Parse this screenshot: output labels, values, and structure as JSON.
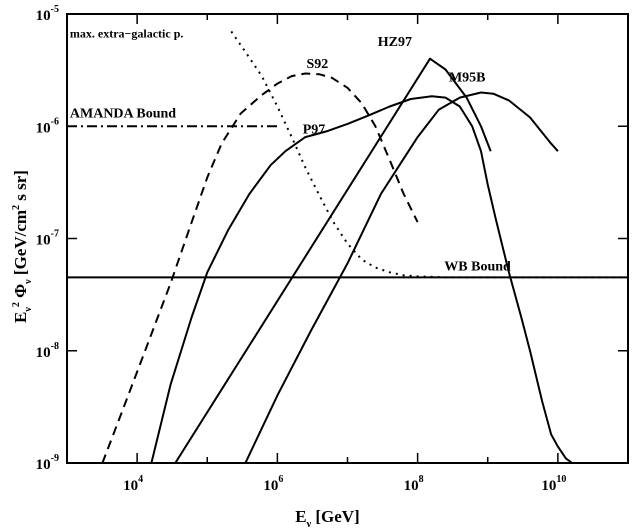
{
  "chart_data": {
    "type": "line",
    "xscale": "log",
    "yscale": "log",
    "xlim": [
      1000,
      100000000000.0
    ],
    "ylim": [
      1e-09,
      1e-05
    ],
    "xlabel": "E_ν [GeV]",
    "ylabel": "E_ν² Φ_ν [GeV/cm² s sr]",
    "x_ticks": [
      {
        "value": 10000.0,
        "base": "10",
        "exp": "4"
      },
      {
        "value": 1000000.0,
        "base": "10",
        "exp": "6"
      },
      {
        "value": 100000000.0,
        "base": "10",
        "exp": "8"
      },
      {
        "value": 10000000000.0,
        "base": "10",
        "exp": "10"
      }
    ],
    "y_ticks": [
      {
        "value": 1e-09,
        "base": "10",
        "exp": "-9"
      },
      {
        "value": 1e-08,
        "base": "10",
        "exp": "-8"
      },
      {
        "value": 1e-07,
        "base": "10",
        "exp": "-7"
      },
      {
        "value": 1e-06,
        "base": "10",
        "exp": "-6"
      },
      {
        "value": 1e-05,
        "base": "10",
        "exp": "-5"
      }
    ],
    "series": [
      {
        "name": "S92",
        "style": "dashed",
        "x": [
          3200.0,
          6000.0,
          13000.0,
          30000.0,
          60000.0,
          100000.0,
          160000.0,
          300000.0,
          600000.0,
          1000000.0,
          1600000.0,
          2500000.0,
          4000000.0,
          6000000.0,
          10000000.0,
          16000000.0,
          25000000.0,
          40000000.0,
          63000000.0,
          100000000.0
        ],
        "y": [
          1e-09,
          2.8e-09,
          1e-08,
          4e-08,
          1.4e-07,
          3.5e-07,
          7e-07,
          1.3e-06,
          1.9e-06,
          2.4e-06,
          2.8e-06,
          2.95e-06,
          2.9e-06,
          2.7e-06,
          2.2e-06,
          1.6e-06,
          1e-06,
          5e-07,
          2.5e-07,
          1.4e-07
        ]
      },
      {
        "name": "AMANDA Bound",
        "style": "dashdot",
        "x": [
          1000.0,
          1000000.0
        ],
        "y": [
          1e-06,
          1e-06
        ]
      },
      {
        "name": "max. extra-galactic p.",
        "style": "dotted",
        "x": [
          220000.0,
          350000.0,
          600000.0,
          1000000.0,
          1600000.0,
          2500000.0,
          4000000.0,
          6300000.0,
          10000000.0,
          16000000.0,
          25000000.0,
          40000000.0,
          63000000.0,
          100000000.0,
          160000000.0,
          250000000.0,
          400000000.0,
          1000000000.0,
          10000000000.0,
          100000000000.0
        ],
        "y": [
          7e-06,
          4.6e-06,
          2.8e-06,
          1.5e-06,
          8e-07,
          4.3e-07,
          2.4e-07,
          1.4e-07,
          9e-08,
          6.5e-08,
          5.5e-08,
          5e-08,
          4.7e-08,
          4.6e-08,
          4.55e-08,
          4.5e-08,
          4.5e-08,
          4.5e-08,
          4.5e-08,
          4.5e-08
        ]
      },
      {
        "name": "WB Bound",
        "style": "solid",
        "x": [
          1000.0,
          100000000000.0
        ],
        "y": [
          4.5e-08,
          4.5e-08
        ]
      },
      {
        "name": "P97",
        "style": "solid",
        "x": [
          16000.0,
          30000.0,
          60000.0,
          100000.0,
          200000.0,
          400000.0,
          800000.0,
          1300000.0,
          2500000.0,
          5000000.0,
          10000000.0,
          20000000.0,
          40000000.0,
          80000000.0,
          160000000.0,
          250000000.0,
          400000000.0,
          600000000.0,
          800000000.0,
          1000000000.0,
          1300000000.0,
          2000000000.0,
          3000000000.0,
          4000000000.0,
          6000000000.0,
          8000000000.0,
          10000000000.0,
          13000000000.0,
          16000000000.0
        ],
        "y": [
          1e-09,
          5e-09,
          2e-08,
          5e-08,
          1.2e-07,
          2.5e-07,
          4.5e-07,
          6e-07,
          8e-07,
          9e-07,
          1.05e-06,
          1.25e-06,
          1.5e-06,
          1.75e-06,
          1.85e-06,
          1.8e-06,
          1.5e-06,
          1e-06,
          6e-07,
          3e-07,
          1.5e-07,
          5e-08,
          2e-08,
          1e-08,
          3.5e-09,
          1.8e-09,
          1.4e-09,
          1.1e-09,
          1e-09
        ]
      },
      {
        "name": "HZ97",
        "style": "solid",
        "x": [
          35000.0,
          150000000.0,
          250000000.0,
          500000000.0,
          800000000.0,
          1100000000.0
        ],
        "y": [
          1e-09,
          4e-06,
          3.2e-06,
          1.8e-06,
          1e-06,
          6e-07
        ]
      },
      {
        "name": "M95B",
        "style": "solid",
        "x": [
          350000.0,
          1000000.0,
          3000000.0,
          10000000.0,
          30000000.0,
          100000000.0,
          200000000.0,
          400000000.0,
          800000000.0,
          1200000000.0,
          2000000000.0,
          4000000000.0,
          8000000000.0,
          10000000000.0
        ],
        "y": [
          1e-09,
          4e-09,
          1.5e-08,
          6e-08,
          2.5e-07,
          8e-07,
          1.4e-06,
          1.8e-06,
          2e-06,
          1.95e-06,
          1.7e-06,
          1.2e-06,
          7e-07,
          6e-07
        ]
      }
    ],
    "annotations": [
      {
        "text": "max. extra−galactic p.",
        "x": 1100.0,
        "y": 6.2e-06,
        "size": "small"
      },
      {
        "text": "S92",
        "x": 2600000.0,
        "y": 3.3e-06,
        "size": "normal"
      },
      {
        "text": "HZ97",
        "x": 27000000.0,
        "y": 5.2e-06,
        "size": "normal"
      },
      {
        "text": "M95B",
        "x": 280000000.0,
        "y": 2.5e-06,
        "size": "normal"
      },
      {
        "text": "AMANDA Bound",
        "x": 1100.0,
        "y": 1.2e-06,
        "size": "normal"
      },
      {
        "text": "P97",
        "x": 2300000.0,
        "y": 8.6e-07,
        "size": "normal"
      },
      {
        "text": "WB Bound",
        "x": 240000000.0,
        "y": 5.2e-08,
        "size": "normal"
      }
    ],
    "grid": false,
    "legend": "none"
  }
}
